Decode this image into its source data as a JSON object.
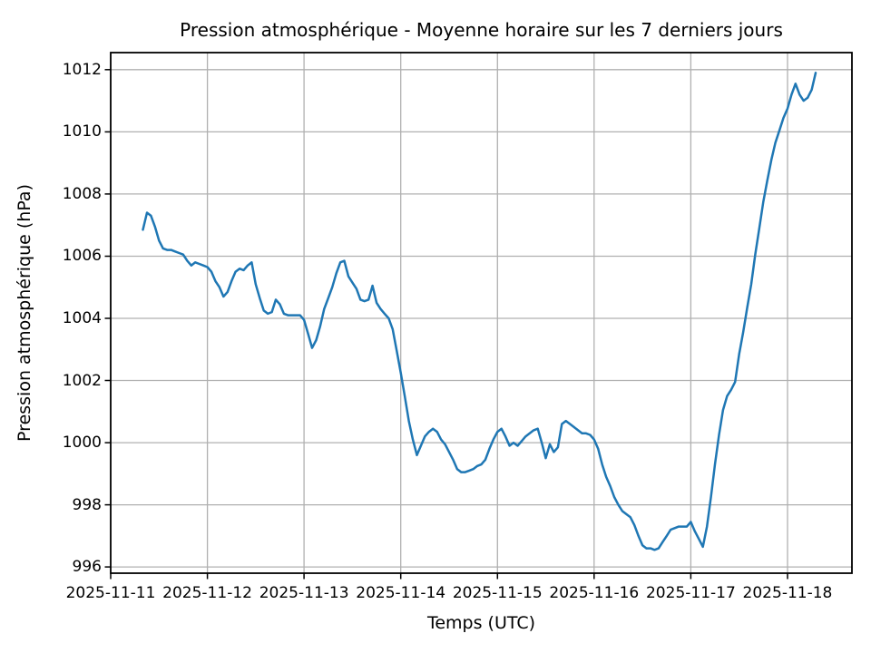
{
  "figure": {
    "title": "Pression atmosphérique - Moyenne horaire sur les 7 derniers jours",
    "xlabel": "Temps (UTC)",
    "ylabel": "Pression atmosphérique (hPa)"
  },
  "chart_data": {
    "type": "line",
    "title": "Pression atmosphérique - Moyenne horaire sur les 7 derniers jours",
    "xlabel": "Temps (UTC)",
    "ylabel": "Pression atmosphérique (hPa)",
    "legend": "none",
    "grid": true,
    "line_color": "#1f77b4",
    "grid_color": "#b0b0b0",
    "x_start": "2025-11-11 08:00 UTC",
    "x_end": "2025-11-18 07:00 UTC",
    "x_interval": "1 hour",
    "x_tick_labels": [
      "2025-11-11",
      "2025-11-12",
      "2025-11-13",
      "2025-11-14",
      "2025-11-15",
      "2025-11-16",
      "2025-11-17",
      "2025-11-18"
    ],
    "x_tick_hours": [
      0,
      24,
      48,
      72,
      96,
      120,
      144,
      168
    ],
    "x_start_hour_offset": 8,
    "xlim_hours": [
      0,
      184
    ],
    "y_ticks": [
      996,
      998,
      1000,
      1002,
      1004,
      1006,
      1008,
      1010,
      1012
    ],
    "ylim": [
      995.8,
      1012.55
    ],
    "values": [
      1006.85,
      1007.4,
      1007.3,
      1006.95,
      1006.5,
      1006.25,
      1006.2,
      1006.2,
      1006.15,
      1006.1,
      1006.05,
      1005.85,
      1005.7,
      1005.8,
      1005.75,
      1005.7,
      1005.65,
      1005.5,
      1005.2,
      1005.0,
      1004.7,
      1004.85,
      1005.2,
      1005.5,
      1005.6,
      1005.55,
      1005.7,
      1005.8,
      1005.1,
      1004.65,
      1004.25,
      1004.15,
      1004.2,
      1004.6,
      1004.45,
      1004.15,
      1004.1,
      1004.1,
      1004.1,
      1004.1,
      1003.95,
      1003.5,
      1003.05,
      1003.3,
      1003.75,
      1004.3,
      1004.65,
      1005.0,
      1005.45,
      1005.8,
      1005.85,
      1005.35,
      1005.15,
      1004.95,
      1004.6,
      1004.55,
      1004.6,
      1005.05,
      1004.5,
      1004.3,
      1004.15,
      1004.0,
      1003.65,
      1002.95,
      1002.25,
      1001.5,
      1000.7,
      1000.1,
      999.6,
      999.9,
      1000.2,
      1000.35,
      1000.45,
      1000.35,
      1000.1,
      999.95,
      999.7,
      999.45,
      999.15,
      999.05,
      999.05,
      999.1,
      999.15,
      999.25,
      999.3,
      999.45,
      999.8,
      1000.1,
      1000.35,
      1000.45,
      1000.2,
      999.9,
      1000.0,
      999.9,
      1000.05,
      1000.2,
      1000.3,
      1000.4,
      1000.45,
      1000.0,
      999.5,
      999.95,
      999.7,
      999.85,
      1000.6,
      1000.7,
      1000.6,
      1000.5,
      1000.4,
      1000.3,
      1000.3,
      1000.25,
      1000.1,
      999.8,
      999.3,
      998.9,
      998.6,
      998.25,
      998.0,
      997.8,
      997.7,
      997.6,
      997.35,
      997.0,
      996.7,
      996.6,
      996.6,
      996.55,
      996.6,
      996.8,
      997.0,
      997.2,
      997.25,
      997.3,
      997.3,
      997.3,
      997.45,
      997.15,
      996.9,
      996.65,
      997.3,
      998.25,
      999.3,
      1000.25,
      1001.05,
      1001.5,
      1001.7,
      1001.95,
      1002.85,
      1003.55,
      1004.35,
      1005.1,
      1006.05,
      1006.9,
      1007.75,
      1008.45,
      1009.1,
      1009.65,
      1010.05,
      1010.45,
      1010.75,
      1011.2,
      1011.55,
      1011.2,
      1011.0,
      1011.1,
      1011.35,
      1011.9
    ]
  }
}
